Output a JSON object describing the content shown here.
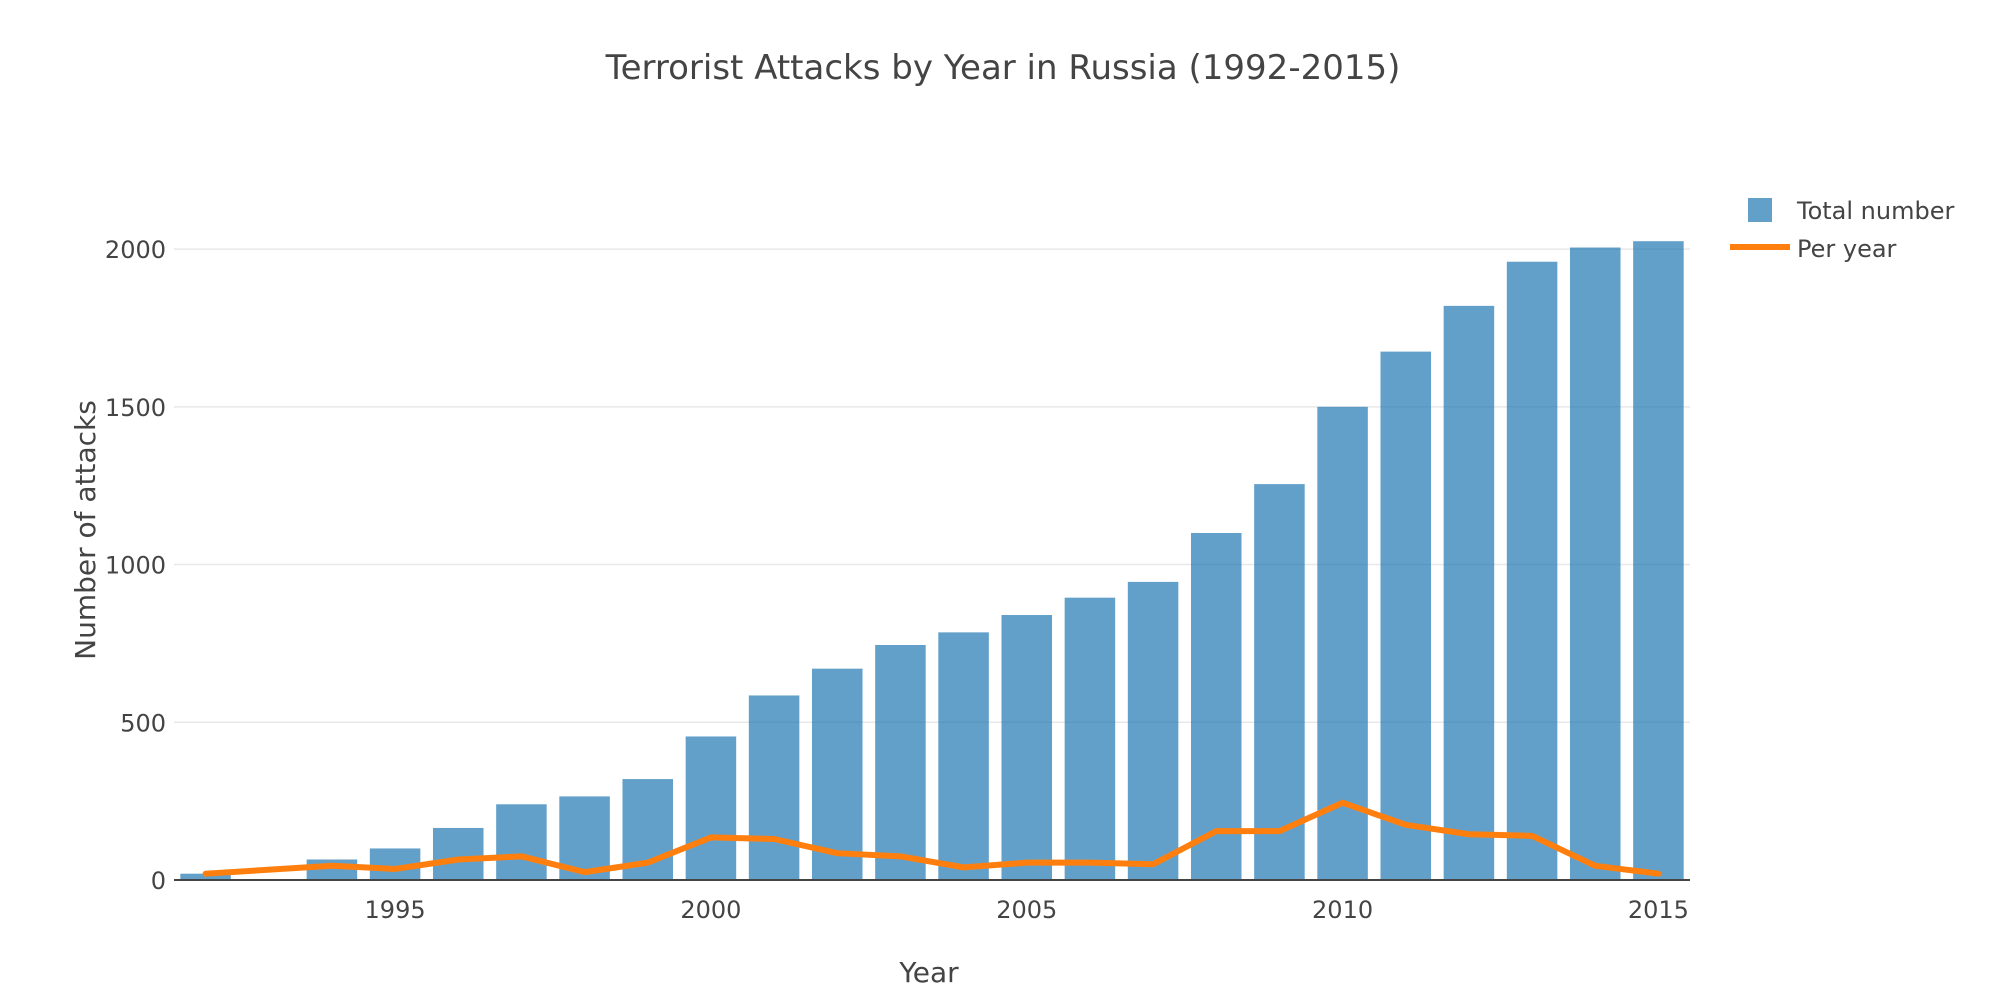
{
  "chart_data": {
    "type": "bar",
    "title": "Terrorist Attacks by Year in Russia (1992-2015)",
    "xlabel": "Year",
    "ylabel": "Number of attacks",
    "xlim": [
      1991.5,
      2015.5
    ],
    "ylim": [
      0,
      2200
    ],
    "x_ticks": [
      "1995",
      "2000",
      "2005",
      "2010",
      "2015"
    ],
    "y_ticks": [
      "0",
      "500",
      "1000",
      "1500",
      "2000"
    ],
    "grid": true,
    "legend_position": "top-right",
    "colors": {
      "bars": "#1f77b4",
      "line": "#ff7f0e"
    },
    "x": [
      1992,
      1994,
      1995,
      1996,
      1997,
      1998,
      1999,
      2000,
      2001,
      2002,
      2003,
      2004,
      2005,
      2006,
      2007,
      2008,
      2009,
      2010,
      2011,
      2012,
      2013,
      2014,
      2015
    ],
    "series": [
      {
        "name": "Total number",
        "type": "bar",
        "values": [
          20,
          65,
          100,
          165,
          240,
          265,
          320,
          455,
          585,
          670,
          745,
          785,
          840,
          895,
          945,
          1100,
          1255,
          1500,
          1675,
          1820,
          1960,
          2005,
          2025
        ]
      },
      {
        "name": "Per year",
        "type": "line",
        "values": [
          20,
          45,
          35,
          65,
          75,
          25,
          55,
          135,
          130,
          85,
          75,
          40,
          55,
          55,
          50,
          155,
          155,
          245,
          175,
          145,
          140,
          45,
          20
        ]
      }
    ]
  }
}
